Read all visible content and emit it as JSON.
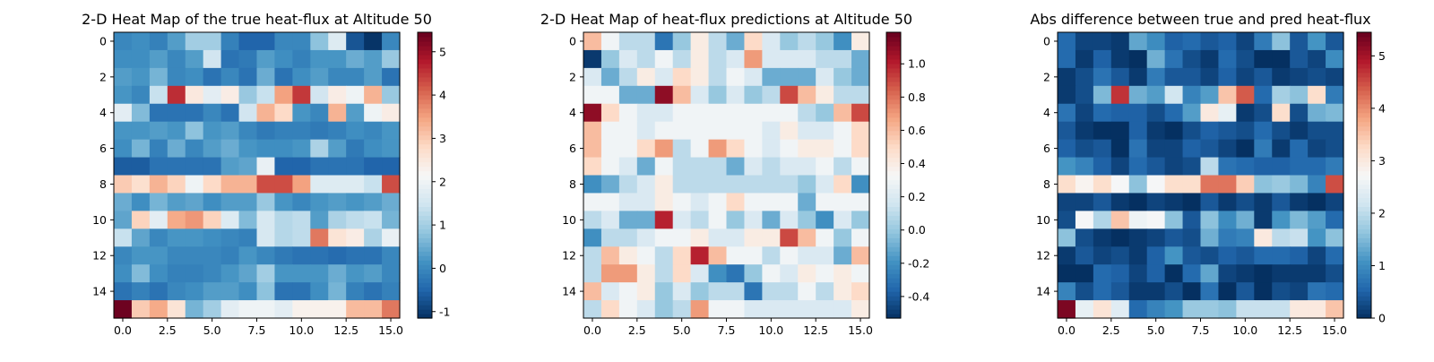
{
  "figure": {
    "colormap": "RdBu_r",
    "colormap_stops": [
      "#053061",
      "#2166ac",
      "#4393c3",
      "#92c5de",
      "#d1e5f0",
      "#f7f7f7",
      "#fddbc7",
      "#f4a582",
      "#d6604d",
      "#b2182b",
      "#67001f"
    ]
  },
  "chart_data": [
    {
      "type": "heatmap",
      "title": "2-D Heat Map of the true heat-flux at Altitude 50",
      "xlabel": "",
      "ylabel": "",
      "x_ticks": [
        "0.0",
        "2.5",
        "5.0",
        "7.5",
        "10.0",
        "12.5",
        "15.0"
      ],
      "y_ticks": [
        "0",
        "2",
        "4",
        "6",
        "8",
        "10",
        "12",
        "14"
      ],
      "clim": [
        -1.15,
        5.45
      ],
      "colorbar_ticks": [
        "-1",
        "0",
        "1",
        "2",
        "3",
        "4",
        "5"
      ],
      "values": [
        [
          0.0,
          0.1,
          -0.1,
          0.3,
          1.0,
          1.0,
          -0.1,
          -0.5,
          -0.5,
          0.0,
          0.0,
          0.8,
          1.7,
          -0.7,
          -1.1,
          0.0
        ],
        [
          0.1,
          0.1,
          0.3,
          0.0,
          0.3,
          1.5,
          -0.3,
          -0.2,
          0.3,
          0.1,
          -0.1,
          0.2,
          0.2,
          0.5,
          0.3,
          0.9
        ],
        [
          0.3,
          0.2,
          0.6,
          0.0,
          0.1,
          -0.3,
          0.0,
          -0.3,
          0.5,
          -0.3,
          0.1,
          0.3,
          0.0,
          0.0,
          0.3,
          -0.3
        ],
        [
          0.2,
          0.0,
          1.4,
          4.6,
          2.5,
          1.8,
          2.4,
          0.9,
          1.4,
          3.5,
          4.5,
          1.5,
          2.4,
          2.0,
          3.3,
          0.9
        ],
        [
          1.8,
          0.7,
          -0.3,
          -0.3,
          -0.3,
          0.0,
          -0.3,
          1.5,
          3.3,
          2.8,
          0.2,
          0.0,
          3.3,
          0.3,
          2.0,
          2.4
        ],
        [
          0.2,
          0.2,
          0.3,
          0.2,
          0.8,
          0.2,
          0.3,
          0.0,
          -0.2,
          -0.1,
          -0.1,
          -0.2,
          -0.1,
          0.1,
          0.0,
          0.2
        ],
        [
          0.1,
          0.6,
          -0.1,
          0.5,
          0.0,
          0.3,
          0.5,
          0.2,
          0.1,
          0.1,
          0.2,
          1.1,
          0.3,
          -0.2,
          0.1,
          0.2
        ],
        [
          -0.6,
          -0.6,
          -0.3,
          -0.3,
          -0.3,
          -0.3,
          0.3,
          0.4,
          1.9,
          -0.5,
          -0.5,
          -0.3,
          -0.3,
          -0.3,
          -0.5,
          -0.5
        ],
        [
          3.0,
          2.7,
          3.3,
          2.9,
          2.0,
          2.8,
          3.3,
          3.3,
          4.3,
          4.3,
          3.5,
          1.7,
          1.7,
          1.7,
          1.4,
          4.3
        ],
        [
          0.5,
          0.1,
          0.6,
          0.3,
          0.4,
          0.1,
          0.3,
          0.3,
          0.9,
          0.2,
          0.0,
          0.2,
          0.3,
          0.2,
          0.3,
          0.5
        ],
        [
          0.4,
          2.9,
          1.8,
          3.4,
          3.6,
          2.9,
          1.7,
          0.7,
          1.6,
          1.2,
          1.3,
          0.3,
          1.1,
          1.3,
          1.4,
          0.6
        ],
        [
          1.4,
          0.4,
          0.0,
          0.2,
          0.2,
          0.1,
          0.0,
          -0.1,
          1.6,
          1.2,
          1.3,
          3.9,
          2.6,
          2.4,
          1.1,
          1.9
        ],
        [
          0.0,
          0.2,
          0.2,
          0.0,
          0.0,
          0.0,
          -0.1,
          0.2,
          0.0,
          -0.2,
          -0.3,
          -0.3,
          -0.4,
          -0.3,
          -0.3,
          0.0
        ],
        [
          0.1,
          0.7,
          0.1,
          -0.1,
          -0.1,
          0.0,
          0.2,
          0.4,
          1.0,
          0.2,
          0.2,
          0.2,
          0.5,
          0.2,
          0.3,
          0.0
        ],
        [
          -0.3,
          -0.1,
          -0.3,
          0.0,
          0.1,
          0.3,
          0.3,
          0.1,
          0.8,
          -0.3,
          -0.3,
          0.1,
          0.6,
          -0.1,
          -0.3,
          -0.1
        ],
        [
          5.4,
          3.0,
          3.4,
          2.6,
          0.6,
          1.0,
          1.8,
          2.0,
          2.0,
          1.8,
          2.3,
          2.3,
          2.3,
          3.2,
          3.2,
          3.9
        ]
      ]
    },
    {
      "type": "heatmap",
      "title": "2-D Heat Map of heat-flux predictions at Altitude 50",
      "xlabel": "",
      "ylabel": "",
      "x_ticks": [
        "0.0",
        "2.5",
        "5.0",
        "7.5",
        "10.0",
        "12.5",
        "15.0"
      ],
      "y_ticks": [
        "0",
        "2",
        "4",
        "6",
        "8",
        "10",
        "12",
        "14"
      ],
      "clim": [
        -0.53,
        1.19
      ],
      "colorbar_ticks": [
        "-0.4",
        "-0.2",
        "0.0",
        "0.2",
        "0.4",
        "0.6",
        "0.8",
        "1.0"
      ],
      "values": [
        [
          0.6,
          0.3,
          0.1,
          0.1,
          -0.3,
          0.0,
          0.4,
          0.1,
          -0.1,
          0.5,
          0.2,
          0.0,
          0.1,
          0.0,
          -0.2,
          0.4
        ],
        [
          -0.5,
          0.0,
          0.2,
          0.1,
          0.3,
          0.1,
          0.4,
          0.1,
          0.2,
          0.7,
          0.2,
          0.2,
          0.2,
          0.1,
          0.1,
          -0.1
        ],
        [
          0.2,
          -0.1,
          0.1,
          0.4,
          0.2,
          0.5,
          0.4,
          0.1,
          0.3,
          0.2,
          -0.1,
          -0.1,
          -0.1,
          0.2,
          0.0,
          -0.1
        ],
        [
          0.3,
          0.3,
          -0.1,
          -0.1,
          1.1,
          0.6,
          0.2,
          0.0,
          0.2,
          0.0,
          0.1,
          0.9,
          0.6,
          0.4,
          0.1,
          0.1
        ],
        [
          1.1,
          0.5,
          0.3,
          0.2,
          0.2,
          0.3,
          0.3,
          0.3,
          0.3,
          0.3,
          0.3,
          0.3,
          0.1,
          0.0,
          0.6,
          0.9
        ],
        [
          0.6,
          0.3,
          0.3,
          0.2,
          0.3,
          0.3,
          0.3,
          0.3,
          0.3,
          0.3,
          0.2,
          0.4,
          0.2,
          0.2,
          0.3,
          0.5
        ],
        [
          0.6,
          0.3,
          0.3,
          0.5,
          0.7,
          0.1,
          0.3,
          0.7,
          0.5,
          0.3,
          0.2,
          0.3,
          0.4,
          0.4,
          0.3,
          0.5
        ],
        [
          0.5,
          0.3,
          0.2,
          -0.1,
          0.3,
          0.1,
          0.1,
          0.1,
          -0.1,
          0.2,
          0.1,
          0.2,
          0.2,
          0.3,
          0.1,
          0.3
        ],
        [
          -0.2,
          -0.1,
          0.1,
          0.2,
          0.4,
          0.1,
          0.1,
          0.1,
          0.1,
          0.1,
          0.1,
          0.1,
          0.0,
          0.2,
          0.5,
          -0.2
        ],
        [
          0.3,
          0.3,
          0.2,
          0.2,
          0.4,
          0.3,
          0.2,
          0.3,
          0.5,
          0.3,
          0.3,
          0.3,
          -0.1,
          0.3,
          0.3,
          0.3
        ],
        [
          0.1,
          0.2,
          -0.1,
          -0.1,
          1.0,
          0.2,
          0.1,
          0.3,
          0.0,
          0.2,
          -0.1,
          0.2,
          0.0,
          -0.2,
          0.2,
          0.0
        ],
        [
          -0.2,
          0.1,
          0.1,
          0.2,
          0.3,
          0.3,
          0.4,
          0.2,
          0.2,
          0.4,
          0.4,
          0.9,
          0.6,
          0.3,
          0.0,
          0.3
        ],
        [
          0.1,
          0.6,
          0.4,
          0.3,
          0.1,
          0.5,
          1.0,
          0.6,
          0.3,
          0.3,
          0.1,
          0.3,
          0.2,
          0.2,
          -0.1,
          0.6
        ],
        [
          0.1,
          0.7,
          0.7,
          0.4,
          0.1,
          0.5,
          0.2,
          -0.2,
          -0.3,
          0.0,
          0.3,
          0.2,
          0.4,
          0.3,
          0.4,
          0.3
        ],
        [
          0.6,
          0.2,
          0.3,
          0.4,
          0.0,
          0.2,
          0.0,
          0.1,
          0.1,
          -0.3,
          0.1,
          0.1,
          0.3,
          0.1,
          0.4,
          0.5
        ],
        [
          0.1,
          0.5,
          0.3,
          0.2,
          0.0,
          0.1,
          0.7,
          0.3,
          0.3,
          0.2,
          0.2,
          0.2,
          0.2,
          0.2,
          0.2,
          0.4
        ]
      ]
    },
    {
      "type": "heatmap",
      "title": "Abs difference between true and pred heat-flux",
      "xlabel": "",
      "ylabel": "",
      "x_ticks": [
        "0.0",
        "2.5",
        "5.0",
        "7.5",
        "10.0",
        "12.5",
        "15.0"
      ],
      "y_ticks": [
        "0",
        "2",
        "4",
        "6",
        "8",
        "10",
        "12",
        "14"
      ],
      "clim": [
        0.0,
        5.45
      ],
      "colorbar_ticks": [
        "0",
        "1",
        "2",
        "3",
        "4",
        "5"
      ],
      "values": [
        [
          0.6,
          0.2,
          0.2,
          0.1,
          1.3,
          1.0,
          0.5,
          0.6,
          0.4,
          0.5,
          0.2,
          0.8,
          1.6,
          0.4,
          1.1,
          0.4
        ],
        [
          0.6,
          0.1,
          0.5,
          0.1,
          0.0,
          1.4,
          0.7,
          0.3,
          0.1,
          0.6,
          0.3,
          0.0,
          0.0,
          0.4,
          0.2,
          1.0
        ],
        [
          0.1,
          0.3,
          0.7,
          0.4,
          0.1,
          0.8,
          0.4,
          0.4,
          0.2,
          0.5,
          0.2,
          0.4,
          0.1,
          0.2,
          0.3,
          0.2
        ],
        [
          0.1,
          0.3,
          1.5,
          4.7,
          1.4,
          1.2,
          2.2,
          0.9,
          1.2,
          3.5,
          4.4,
          0.6,
          1.8,
          1.6,
          3.2,
          0.8
        ],
        [
          0.7,
          0.2,
          0.6,
          0.5,
          0.5,
          0.3,
          0.6,
          1.2,
          3.0,
          2.5,
          0.1,
          0.3,
          3.2,
          0.3,
          1.4,
          1.5
        ],
        [
          0.4,
          0.1,
          0.0,
          0.0,
          0.5,
          0.1,
          0.0,
          0.3,
          0.5,
          0.4,
          0.3,
          0.6,
          0.3,
          0.1,
          0.3,
          0.3
        ],
        [
          0.5,
          0.3,
          0.4,
          0.0,
          0.7,
          0.2,
          0.2,
          0.5,
          0.4,
          0.2,
          0.0,
          0.8,
          0.1,
          0.6,
          0.2,
          0.3
        ],
        [
          1.1,
          0.9,
          0.5,
          0.2,
          0.6,
          0.4,
          0.2,
          0.3,
          2.0,
          0.7,
          0.6,
          0.5,
          0.5,
          0.6,
          0.6,
          0.8
        ],
        [
          3.2,
          2.8,
          3.2,
          2.7,
          1.6,
          2.7,
          3.2,
          3.2,
          4.2,
          4.2,
          3.4,
          1.6,
          1.7,
          1.5,
          0.9,
          4.5
        ],
        [
          0.2,
          0.2,
          0.4,
          0.1,
          0.0,
          0.2,
          0.1,
          0.0,
          0.4,
          0.1,
          0.3,
          0.1,
          0.4,
          0.1,
          0.0,
          0.2
        ],
        [
          0.3,
          2.7,
          1.9,
          3.5,
          2.6,
          2.7,
          1.6,
          0.4,
          1.6,
          1.0,
          1.4,
          0.1,
          1.1,
          1.5,
          1.2,
          0.6
        ],
        [
          1.6,
          0.3,
          0.1,
          0.0,
          0.1,
          0.2,
          0.4,
          0.3,
          1.4,
          0.8,
          0.9,
          3.0,
          2.0,
          2.1,
          1.1,
          1.6
        ],
        [
          0.1,
          0.4,
          0.2,
          0.3,
          0.1,
          0.5,
          1.1,
          0.4,
          0.3,
          0.5,
          0.4,
          0.6,
          0.6,
          0.5,
          0.2,
          0.6
        ],
        [
          0.0,
          0.0,
          0.6,
          0.5,
          0.2,
          0.5,
          0.0,
          0.6,
          1.3,
          0.2,
          0.1,
          0.0,
          0.1,
          0.1,
          0.1,
          0.3
        ],
        [
          0.9,
          0.3,
          0.6,
          0.4,
          0.1,
          0.1,
          0.3,
          0.0,
          0.7,
          0.0,
          0.4,
          0.0,
          0.3,
          0.2,
          0.7,
          0.6
        ],
        [
          5.3,
          2.5,
          3.1,
          2.4,
          0.6,
          0.9,
          1.1,
          1.7,
          1.7,
          1.6,
          2.1,
          2.1,
          2.1,
          3.0,
          3.0,
          3.5
        ]
      ]
    }
  ]
}
